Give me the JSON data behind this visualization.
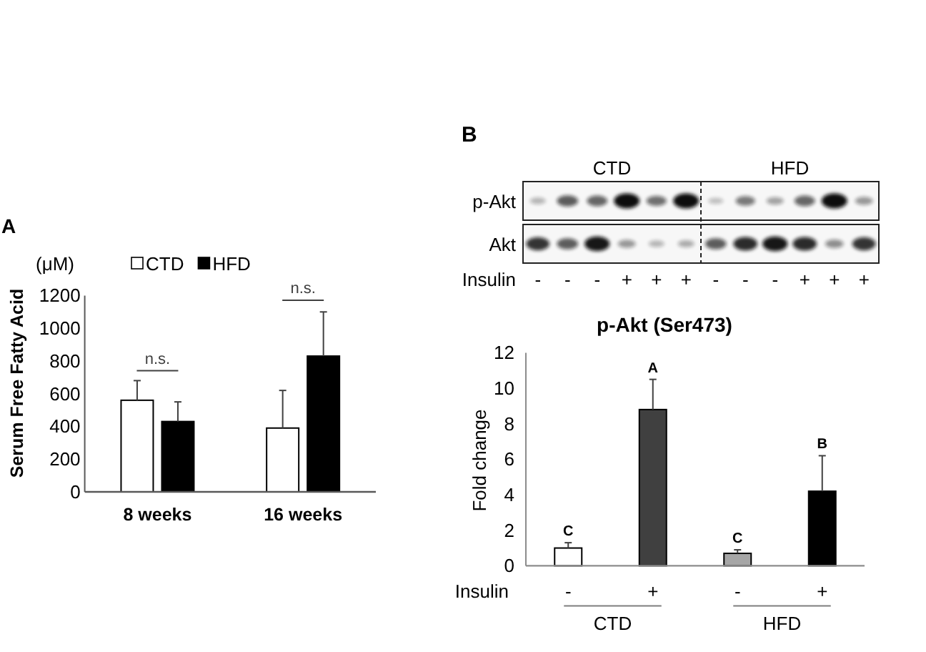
{
  "chart_data": [
    {
      "type": "bar",
      "title": "A",
      "ylabel": "Serum Free Fatty Acid",
      "categories": [
        "8 weeks",
        "16 weeks"
      ],
      "series": [
        {
          "name": "CTD",
          "color": "#ffffff",
          "values": [
            560,
            390
          ],
          "errors": [
            [
              560,
              680
            ],
            [
              390,
              620
            ]
          ]
        },
        {
          "name": "HFD",
          "color": "#000000",
          "values": [
            430,
            830
          ],
          "errors": [
            [
              430,
              550
            ],
            [
              830,
              1100
            ]
          ]
        }
      ],
      "ylim": [
        0,
        1200
      ],
      "yticks": [
        0,
        200,
        400,
        600,
        800,
        1000,
        1200
      ],
      "legend": "top",
      "annotations": [
        "(μM)",
        "n.s.",
        "n.s."
      ]
    },
    {
      "type": "other",
      "title": "B",
      "categories": [
        "-",
        "-",
        "-",
        "+",
        "+",
        "+",
        "-",
        "-",
        "-",
        "+",
        "+",
        "+"
      ],
      "y_categories": [
        "p-Akt",
        "Akt"
      ],
      "xlabel": "Insulin",
      "annotations": [
        "CTD",
        "HFD"
      ]
    },
    {
      "type": "bar",
      "title": "p-Akt (Ser473)",
      "xlabel": "Insulin",
      "ylabel": "Fold change",
      "categories": [
        "-",
        "+",
        "-",
        "+"
      ],
      "values": [
        1.0,
        8.8,
        0.7,
        4.2
      ],
      "colors": [
        "#ffffff",
        "#404040",
        "#a6a6a6",
        "#000000"
      ],
      "errors": [
        [
          1.0,
          1.3
        ],
        [
          8.8,
          10.5
        ],
        [
          0.7,
          0.9
        ],
        [
          4.2,
          6.2
        ]
      ],
      "value_labels": [
        "C",
        "A",
        "C",
        "B"
      ],
      "ylim": [
        0,
        12
      ],
      "yticks": [
        0,
        2,
        4,
        6,
        8,
        10,
        12
      ],
      "annotations": [
        "CTD",
        "HFD"
      ]
    }
  ]
}
